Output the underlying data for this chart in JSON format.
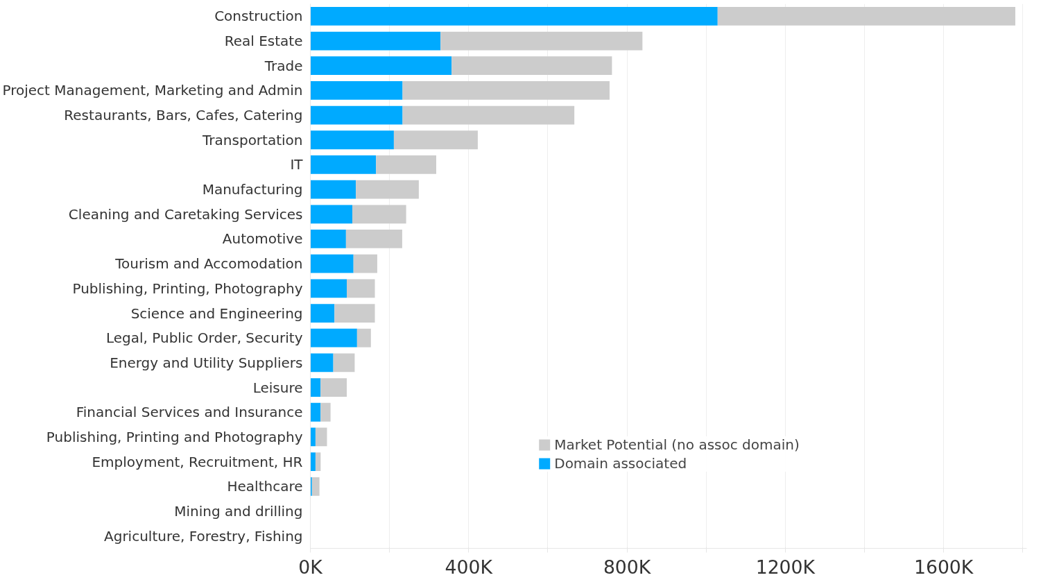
{
  "chart_data": {
    "type": "bar",
    "orientation": "horizontal",
    "stacked": true,
    "categories": [
      "Construction",
      "Real Estate",
      "Trade",
      "Project Management, Marketing and Admin",
      "Restaurants, Bars, Cafes, Catering",
      "Transportation",
      "IT",
      "Manufacturing",
      "Cleaning and Caretaking Services",
      "Automotive",
      "Tourism and Accomodation",
      "Publishing, Printing, Photography",
      "Science and Engineering",
      "Legal, Public Order, Security",
      "Energy and Utility Suppliers",
      "Leisure",
      "Financial Services and Insurance",
      "Publishing, Printing and Photography",
      "Employment, Recruitment, HR",
      "Healthcare",
      "Mining and drilling",
      "Agriculture, Forestry, Fishing"
    ],
    "series": [
      {
        "name": "Domain associated",
        "color": "#00aaff",
        "values": [
          1029,
          329,
          357,
          233,
          233,
          211,
          166,
          115,
          106,
          90,
          109,
          92,
          61,
          118,
          58,
          26,
          26,
          13,
          13,
          4,
          0,
          0
        ]
      },
      {
        "name": "Market Potential (no assoc domain)",
        "color": "#cccccc",
        "values": [
          752,
          510,
          405,
          523,
          434,
          212,
          152,
          159,
          136,
          142,
          60,
          71,
          102,
          35,
          54,
          66,
          25,
          29,
          13,
          19,
          0,
          0
        ]
      }
    ],
    "xlim": [
      0,
      1810
    ],
    "xticks": [
      {
        "value": 0,
        "label": "0K"
      },
      {
        "value": 200,
        "label": null
      },
      {
        "value": 400,
        "label": "400K"
      },
      {
        "value": 600,
        "label": null
      },
      {
        "value": 800,
        "label": "800K"
      },
      {
        "value": 1000,
        "label": null
      },
      {
        "value": 1200,
        "label": "1200K"
      },
      {
        "value": 1400,
        "label": null
      },
      {
        "value": 1600,
        "label": "1600K"
      },
      {
        "value": 1800,
        "label": null
      }
    ],
    "grid": "x",
    "legend": "bottom"
  }
}
